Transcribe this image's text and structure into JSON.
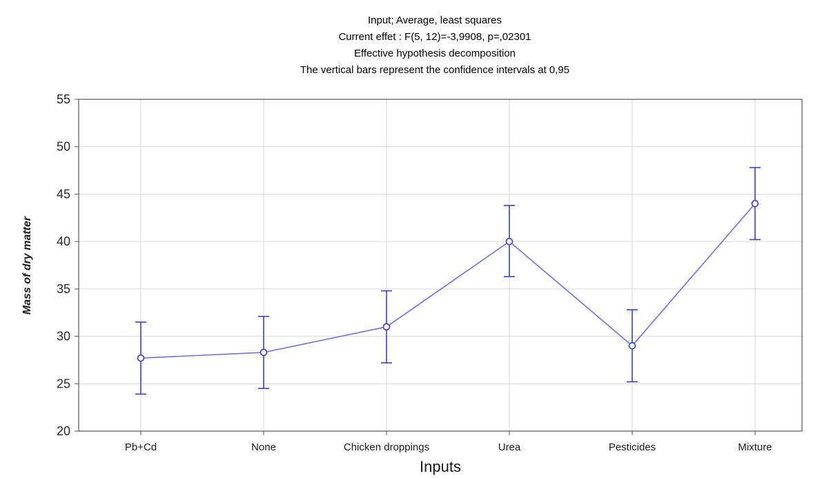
{
  "chart_data": {
    "type": "line",
    "title_lines": [
      "Input; Average, least squares",
      "Current effet : F(5, 12)=-3,9908, p=,02301",
      "Effective hypothesis decomposition",
      "The vertical bars represent the confidence intervals at 0,95"
    ],
    "xlabel": "Inputs",
    "ylabel": "Mass of dry matter",
    "categories": [
      "Pb+Cd",
      "None",
      "Chicken droppings",
      "Urea",
      "Pesticides",
      "Mixture"
    ],
    "series": [
      {
        "values": [
          27.7,
          28.3,
          31.0,
          40.0,
          29.0,
          44.0
        ],
        "lower": [
          23.9,
          24.5,
          27.2,
          36.3,
          25.2,
          40.2
        ],
        "upper": [
          31.5,
          32.1,
          34.8,
          43.8,
          32.8,
          47.8
        ]
      }
    ],
    "ylim": [
      20,
      55
    ],
    "yticks": [
      20,
      25,
      30,
      35,
      40,
      45,
      50,
      55
    ],
    "grid": true,
    "legend": "none",
    "colors": {
      "line": "#6f72d8",
      "marker_fill": "#ffffff",
      "error_bar": "#3b3fc4",
      "grid": "#d9d9d9",
      "axis": "#555555"
    }
  }
}
